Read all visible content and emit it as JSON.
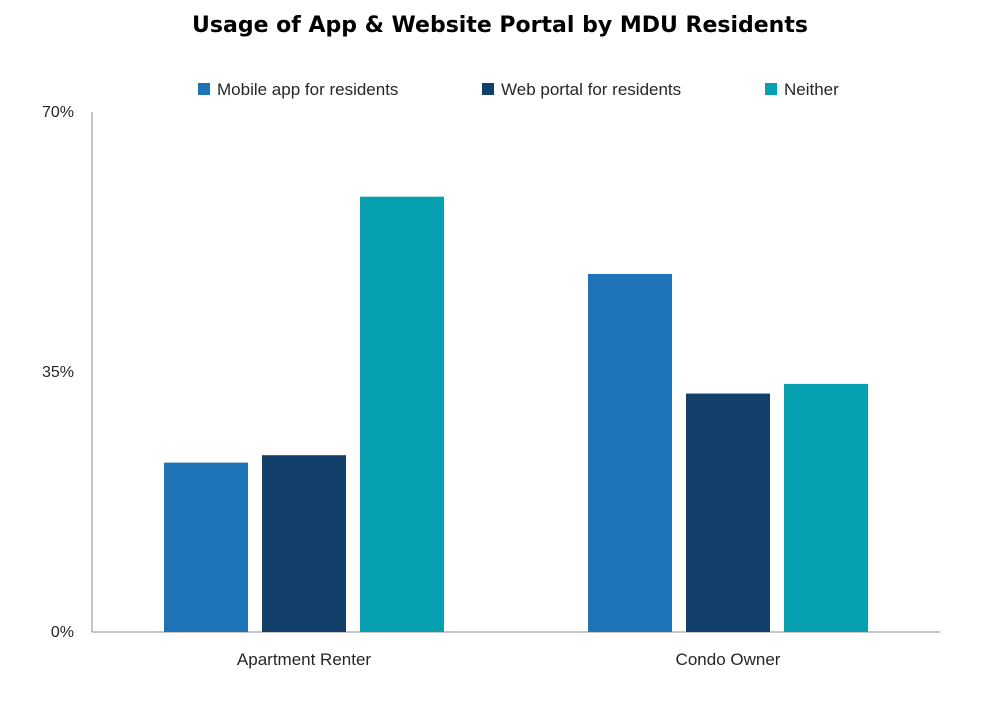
{
  "chart_data": {
    "type": "bar",
    "title": "Usage of App & Website Portal by MDU Residents",
    "categories": [
      "Apartment Renter",
      "Condo Owner"
    ],
    "series": [
      {
        "name": "Mobile app for residents",
        "color": "#1F73B7",
        "values": [
          22.8,
          48.2
        ]
      },
      {
        "name": "Web portal for residents",
        "color": "#12406B",
        "values": [
          23.8,
          32.1
        ]
      },
      {
        "name": "Neither",
        "color": "#06A0B0",
        "values": [
          58.6,
          33.4
        ]
      }
    ],
    "ylim": [
      0,
      70
    ],
    "yticks": [
      0,
      35,
      70
    ],
    "ytick_labels": [
      "0%",
      "35%",
      "70%"
    ],
    "grid": false,
    "legend_position": "top"
  }
}
